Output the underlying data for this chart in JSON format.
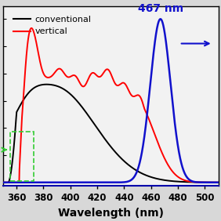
{
  "xlim": [
    350,
    510
  ],
  "ylim": [
    -0.02,
    1.08
  ],
  "xlabel": "Wavelength (nm)",
  "xlabel_fontsize": 10,
  "tick_fontsize": 8.5,
  "legend_entries": [
    "conventional",
    "vertical"
  ],
  "legend_colors": [
    "black",
    "red"
  ],
  "annotation_text": "467 nm",
  "annotation_color": "#1111cc",
  "annotation_fontsize": 10,
  "arrow_color": "#1111cc",
  "dashed_rect_color": "#33cc33",
  "fig_facecolor": "#d8d8d8",
  "ax_facecolor": "#f2f2f2",
  "bottom_spine_color": "#0000aa"
}
